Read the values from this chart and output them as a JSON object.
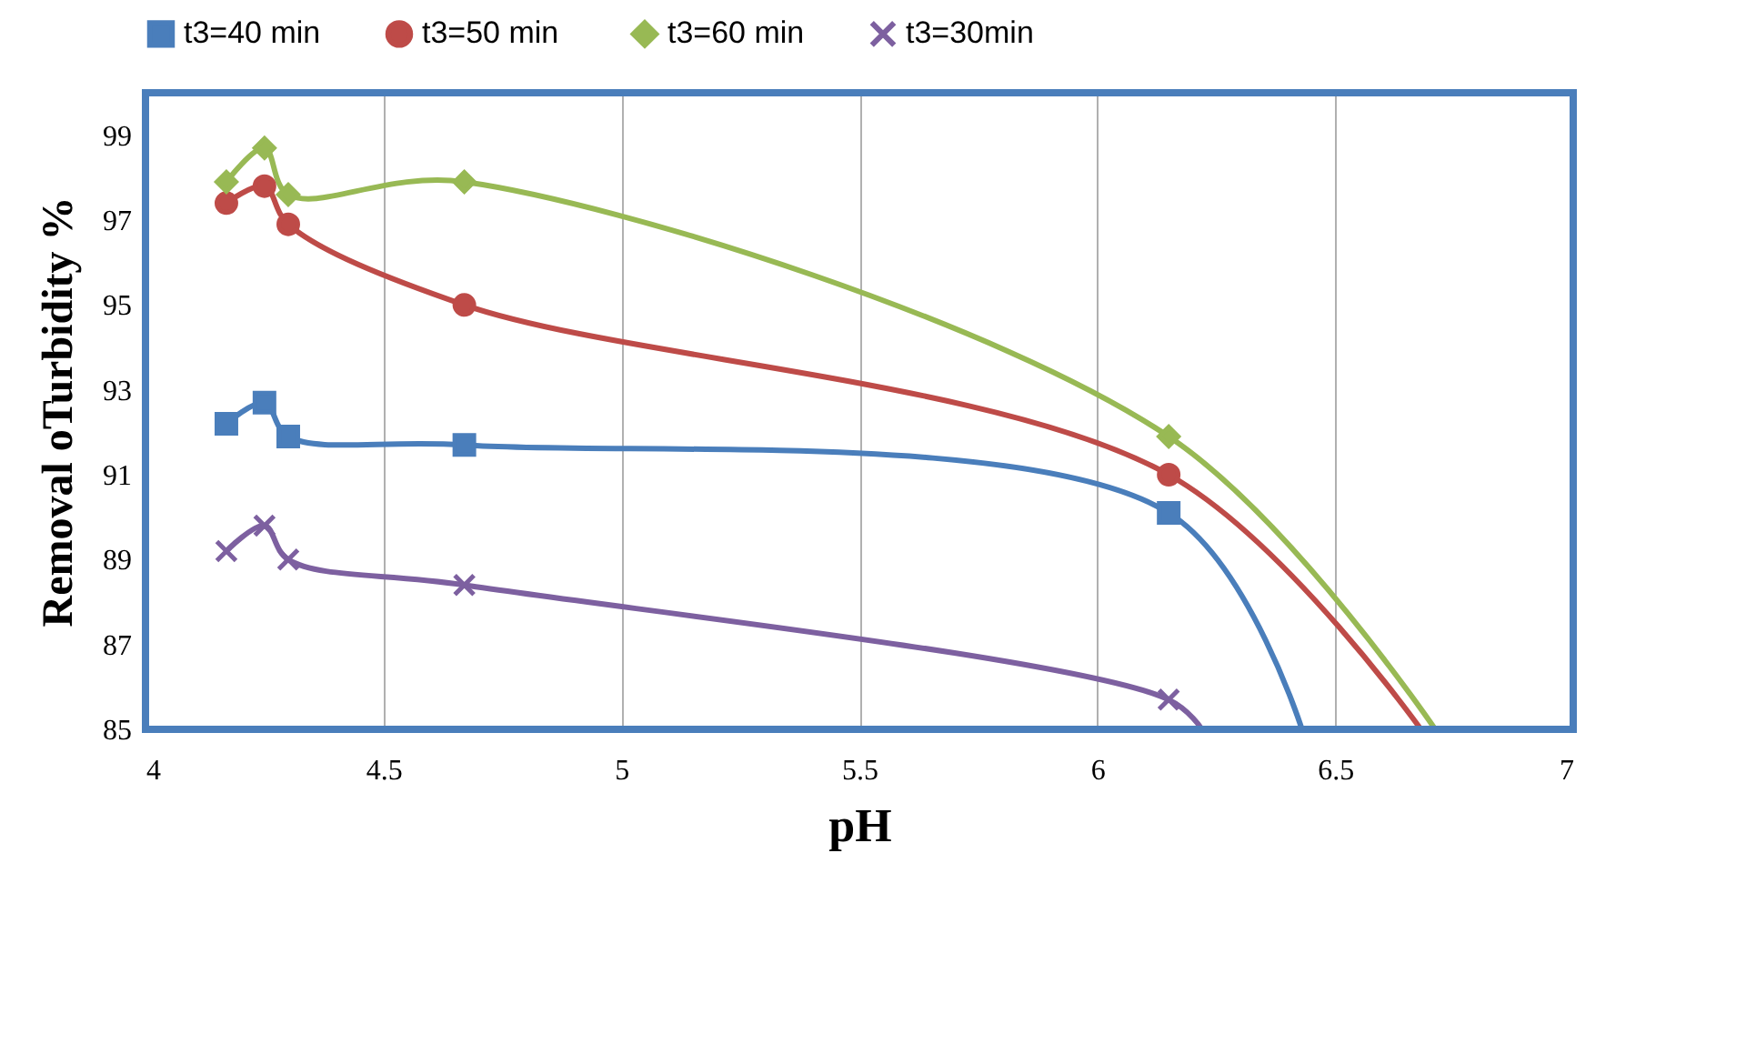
{
  "chart_data": {
    "type": "line",
    "xlabel": "pH",
    "ylabel": "Removal oTurbidity %",
    "xlim": [
      4,
      7
    ],
    "xticks": [
      4,
      4.5,
      5,
      5.5,
      6,
      6.5,
      7
    ],
    "ylim": [
      85,
      100
    ],
    "yticks": [
      85,
      87,
      89,
      91,
      93,
      95,
      97,
      99
    ],
    "grid": "x",
    "legend": "top",
    "line_style": "solid",
    "series": [
      {
        "name": "t3=40 min",
        "color": "#4a7ebb",
        "marker": "square",
        "x": [
          4.17,
          4.25,
          4.3,
          4.67,
          6.15,
          6.43
        ],
        "values": [
          92.2,
          92.7,
          91.9,
          91.7,
          90.1,
          85
        ]
      },
      {
        "name": "t3=50  min",
        "color": "#be4b48",
        "marker": "circle",
        "x": [
          4.17,
          4.25,
          4.3,
          4.67,
          6.15,
          6.68
        ],
        "values": [
          97.4,
          97.8,
          96.9,
          95.0,
          91.0,
          85
        ]
      },
      {
        "name": "t3=60 min",
        "color": "#98b954",
        "marker": "diamond",
        "x": [
          4.17,
          4.25,
          4.3,
          4.67,
          6.15,
          6.71
        ],
        "values": [
          97.9,
          98.7,
          97.6,
          97.9,
          91.9,
          85
        ]
      },
      {
        "name": "t3=30min",
        "color": "#7d60a0",
        "marker": "cross",
        "x": [
          4.17,
          4.25,
          4.3,
          4.67,
          6.15,
          6.22
        ],
        "values": [
          89.2,
          89.8,
          89.0,
          88.4,
          85.7,
          85
        ]
      }
    ]
  }
}
